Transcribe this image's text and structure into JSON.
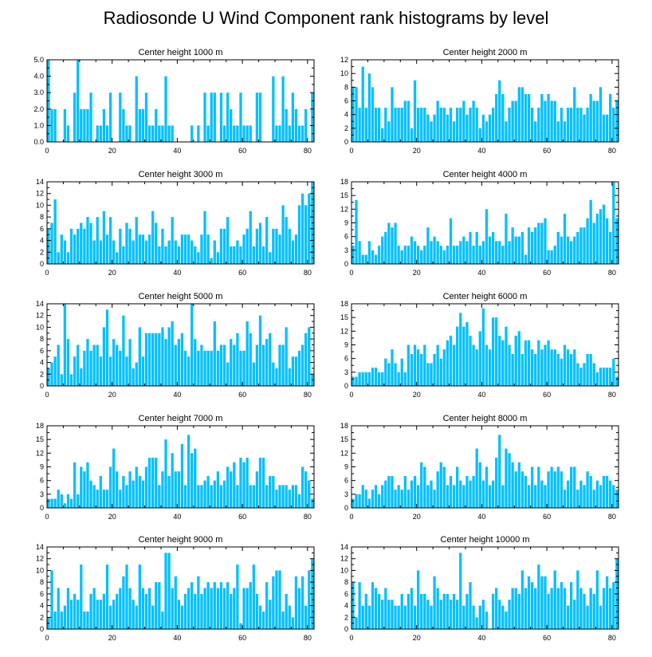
{
  "title": "Radiosonde U Wind Component rank histograms by level",
  "colors": {
    "bar": "#00c0ff",
    "bar_edge": "#ffffff",
    "axis": "#000000"
  },
  "chart_data": [
    {
      "type": "bar",
      "title": "Center height 1000 m",
      "xlim": [
        0,
        82
      ],
      "ylim": [
        0,
        5
      ],
      "xticks": [
        0,
        20,
        40,
        60,
        80
      ],
      "yticks": [
        0,
        1,
        2,
        3,
        4,
        5
      ],
      "ytick_labels": [
        "0.0",
        "1.0",
        "2.0",
        "3.0",
        "4.0",
        "5.0"
      ],
      "values": [
        5,
        2,
        2,
        0,
        0,
        2,
        1,
        0,
        3,
        5,
        2,
        2,
        2,
        3,
        0,
        1,
        1,
        2,
        1,
        3,
        0,
        0,
        3,
        2,
        1,
        1,
        0,
        4,
        2,
        2,
        3,
        1,
        1,
        2,
        1,
        1,
        4,
        1,
        1,
        0,
        0,
        0,
        0,
        0,
        1,
        0,
        1,
        0,
        3,
        1,
        3,
        3,
        0,
        3,
        1,
        3,
        2,
        1,
        1,
        3,
        1,
        1,
        1,
        0,
        3,
        3,
        0,
        0,
        0,
        4,
        1,
        1,
        4,
        2,
        1,
        3,
        2,
        1,
        1,
        2,
        0,
        3
      ]
    },
    {
      "type": "bar",
      "title": "Center height 2000 m",
      "xlim": [
        0,
        82
      ],
      "ylim": [
        0,
        12
      ],
      "xticks": [
        0,
        20,
        40,
        60,
        80
      ],
      "yticks": [
        0,
        2,
        4,
        6,
        8,
        10,
        12
      ],
      "ytick_labels": [
        "0",
        "2",
        "4",
        "6",
        "8",
        "10",
        "12"
      ],
      "values": [
        8,
        8,
        5,
        11,
        5,
        10,
        8,
        5,
        5,
        2,
        5,
        3,
        8,
        5,
        5,
        5,
        6,
        6,
        2,
        9,
        5,
        5,
        5,
        4,
        3,
        4,
        6,
        5,
        5,
        4,
        5,
        3,
        5,
        5,
        6,
        4,
        5,
        6,
        5,
        2,
        4,
        3,
        4,
        5,
        7,
        9,
        7,
        3,
        5,
        6,
        6,
        8,
        8,
        7,
        7,
        5,
        3,
        5,
        7,
        6,
        7,
        6,
        6,
        3,
        5,
        3,
        5,
        5,
        8,
        5,
        5,
        4,
        5,
        7,
        6,
        6,
        8,
        4,
        4,
        7,
        5,
        6
      ]
    },
    {
      "type": "bar",
      "title": "Center height 3000 m",
      "xlim": [
        0,
        82
      ],
      "ylim": [
        0,
        14
      ],
      "xticks": [
        0,
        20,
        40,
        60,
        80
      ],
      "yticks": [
        0,
        2,
        4,
        6,
        8,
        10,
        12,
        14
      ],
      "ytick_labels": [
        "0",
        "2",
        "4",
        "6",
        "8",
        "10",
        "12",
        "14"
      ],
      "values": [
        6,
        7,
        11,
        2,
        5,
        4,
        2,
        6,
        5,
        6,
        7,
        6,
        8,
        7,
        4,
        8,
        4,
        9,
        5,
        8,
        4,
        2,
        6,
        3,
        7,
        6,
        4,
        8,
        5,
        5,
        4,
        5,
        9,
        7,
        3,
        6,
        3,
        4,
        8,
        4,
        3,
        5,
        5,
        5,
        4,
        3,
        2,
        5,
        9,
        5,
        1,
        4,
        2,
        6,
        6,
        8,
        3,
        3,
        4,
        3,
        5,
        6,
        9,
        3,
        6,
        7,
        3,
        8,
        2,
        6,
        6,
        5,
        10,
        8,
        6,
        4,
        5,
        10,
        12,
        10,
        12,
        14
      ]
    },
    {
      "type": "bar",
      "title": "Center height 4000 m",
      "xlim": [
        0,
        82
      ],
      "ylim": [
        0,
        18
      ],
      "xticks": [
        0,
        20,
        40,
        60,
        80
      ],
      "yticks": [
        0,
        3,
        6,
        9,
        12,
        15,
        18
      ],
      "ytick_labels": [
        "0",
        "3",
        "6",
        "9",
        "12",
        "15",
        "18"
      ],
      "values": [
        4,
        14,
        5,
        2,
        2,
        5,
        3,
        2,
        4,
        6,
        7,
        9,
        8,
        9,
        4,
        3,
        4,
        4,
        6,
        5,
        4,
        3,
        4,
        8,
        5,
        6,
        5,
        4,
        3,
        4,
        10,
        4,
        4,
        5,
        6,
        5,
        7,
        4,
        7,
        4,
        5,
        12,
        6,
        7,
        5,
        5,
        4,
        11,
        5,
        8,
        6,
        6,
        7,
        2,
        8,
        7,
        8,
        9,
        9,
        10,
        3,
        3,
        4,
        7,
        6,
        11,
        6,
        5,
        6,
        7,
        8,
        8,
        10,
        14,
        9,
        11,
        12,
        13,
        10,
        7,
        18,
        10
      ]
    },
    {
      "type": "bar",
      "title": "Center height 5000 m",
      "xlim": [
        0,
        82
      ],
      "ylim": [
        0,
        14
      ],
      "xticks": [
        0,
        20,
        40,
        60,
        80
      ],
      "yticks": [
        0,
        2,
        4,
        6,
        8,
        10,
        12,
        14
      ],
      "ytick_labels": [
        "0",
        "2",
        "4",
        "6",
        "8",
        "10",
        "12",
        "14"
      ],
      "values": [
        3,
        4,
        5,
        7,
        2,
        14,
        8,
        2,
        5,
        7,
        3,
        6,
        8,
        6,
        7,
        7,
        5,
        10,
        13,
        5,
        8,
        7,
        6,
        12,
        5,
        8,
        3,
        4,
        10,
        5,
        9,
        9,
        9,
        9,
        9,
        10,
        8,
        10,
        11,
        7,
        8,
        9,
        6,
        5,
        14,
        8,
        6,
        7,
        6,
        6,
        6,
        11,
        6,
        7,
        7,
        4,
        8,
        7,
        9,
        6,
        6,
        11,
        9,
        4,
        7,
        12,
        7,
        8,
        9,
        4,
        3,
        7,
        7,
        10,
        3,
        5,
        5,
        6,
        7,
        9,
        10,
        2
      ]
    },
    {
      "type": "bar",
      "title": "Center height 6000 m",
      "xlim": [
        0,
        82
      ],
      "ylim": [
        0,
        18
      ],
      "xticks": [
        0,
        20,
        40,
        60,
        80
      ],
      "yticks": [
        0,
        3,
        6,
        9,
        12,
        15,
        18
      ],
      "ytick_labels": [
        "0",
        "3",
        "6",
        "9",
        "12",
        "15",
        "18"
      ],
      "values": [
        2,
        2,
        3,
        3,
        3,
        3,
        4,
        4,
        3,
        3,
        6,
        5,
        8,
        5,
        3,
        6,
        3,
        9,
        7,
        9,
        8,
        7,
        9,
        5,
        5,
        7,
        9,
        6,
        8,
        10,
        11,
        9,
        13,
        16,
        13,
        14,
        11,
        9,
        8,
        12,
        17,
        9,
        8,
        15,
        15,
        11,
        10,
        13,
        9,
        7,
        11,
        12,
        7,
        10,
        10,
        8,
        7,
        10,
        8,
        9,
        10,
        8,
        8,
        7,
        6,
        9,
        8,
        7,
        8,
        5,
        4,
        5,
        7,
        7,
        5,
        3,
        4,
        4,
        4,
        4,
        6,
        2
      ]
    },
    {
      "type": "bar",
      "title": "Center height 7000 m",
      "xlim": [
        0,
        82
      ],
      "ylim": [
        0,
        18
      ],
      "xticks": [
        0,
        20,
        40,
        60,
        80
      ],
      "yticks": [
        0,
        3,
        6,
        9,
        12,
        15,
        18
      ],
      "ytick_labels": [
        "0",
        "3",
        "6",
        "9",
        "12",
        "15",
        "18"
      ],
      "values": [
        2,
        2,
        2,
        4,
        3,
        1,
        3,
        2,
        10,
        3,
        9,
        8,
        10,
        6,
        5,
        4,
        7,
        4,
        4,
        9,
        13,
        8,
        4,
        7,
        5,
        8,
        6,
        9,
        7,
        6,
        9,
        11,
        11,
        11,
        5,
        8,
        15,
        7,
        12,
        8,
        8,
        14,
        5,
        16,
        12,
        13,
        5,
        5,
        6,
        7,
        5,
        6,
        8,
        5,
        6,
        9,
        8,
        10,
        5,
        11,
        10,
        11,
        5,
        5,
        8,
        11,
        11,
        5,
        7,
        7,
        4,
        5,
        5,
        5,
        4,
        5,
        5,
        3,
        9,
        8,
        6,
        2
      ]
    },
    {
      "type": "bar",
      "title": "Center height 8000 m",
      "xlim": [
        0,
        82
      ],
      "ylim": [
        0,
        18
      ],
      "xticks": [
        0,
        20,
        40,
        60,
        80
      ],
      "yticks": [
        0,
        3,
        6,
        9,
        12,
        15,
        18
      ],
      "ytick_labels": [
        "0",
        "3",
        "6",
        "9",
        "12",
        "15",
        "18"
      ],
      "values": [
        2,
        3,
        3,
        5,
        4,
        2,
        4,
        5,
        3,
        5,
        6,
        7,
        7,
        4,
        5,
        4,
        7,
        4,
        6,
        7,
        5,
        10,
        9,
        5,
        6,
        4,
        8,
        10,
        9,
        5,
        7,
        5,
        9,
        6,
        5,
        7,
        6,
        7,
        13,
        10,
        6,
        9,
        5,
        6,
        11,
        16,
        5,
        13,
        12,
        10,
        8,
        10,
        8,
        7,
        5,
        9,
        5,
        9,
        6,
        5,
        8,
        9,
        8,
        9,
        8,
        4,
        6,
        9,
        9,
        4,
        6,
        5,
        8,
        7,
        4,
        6,
        5,
        7,
        7,
        6,
        5,
        4
      ]
    },
    {
      "type": "bar",
      "title": "Center height 9000 m",
      "xlim": [
        0,
        82
      ],
      "ylim": [
        0,
        14
      ],
      "xticks": [
        0,
        20,
        40,
        60,
        80
      ],
      "yticks": [
        0,
        2,
        4,
        6,
        8,
        10,
        12,
        14
      ],
      "ytick_labels": [
        "0",
        "2",
        "4",
        "6",
        "8",
        "10",
        "12",
        "14"
      ],
      "values": [
        2,
        10,
        3,
        7,
        3,
        4,
        7,
        5,
        6,
        5,
        11,
        3,
        3,
        6,
        7,
        5,
        5,
        6,
        11,
        4,
        5,
        6,
        7,
        9,
        11,
        7,
        5,
        4,
        11,
        7,
        6,
        7,
        4,
        8,
        8,
        3,
        13,
        13,
        7,
        9,
        5,
        4,
        6,
        7,
        8,
        6,
        9,
        6,
        7,
        8,
        7,
        8,
        7,
        8,
        7,
        8,
        6,
        7,
        11,
        1,
        7,
        7,
        8,
        11,
        6,
        4,
        3,
        8,
        5,
        9,
        10,
        10,
        3,
        6,
        4,
        2,
        9,
        7,
        9,
        4,
        10,
        12
      ]
    },
    {
      "type": "bar",
      "title": "Center height 10000 m",
      "xlim": [
        0,
        82
      ],
      "ylim": [
        0,
        14
      ],
      "xticks": [
        0,
        20,
        40,
        60,
        80
      ],
      "yticks": [
        0,
        2,
        4,
        6,
        8,
        10,
        12,
        14
      ],
      "ytick_labels": [
        "0",
        "2",
        "4",
        "6",
        "8",
        "10",
        "12",
        "14"
      ],
      "values": [
        8,
        2,
        8,
        4,
        6,
        4,
        8,
        7,
        6,
        5,
        7,
        5,
        5,
        4,
        4,
        6,
        4,
        6,
        7,
        4,
        10,
        6,
        6,
        5,
        4,
        9,
        7,
        5,
        6,
        6,
        5,
        6,
        5,
        13,
        4,
        6,
        8,
        4,
        2,
        4,
        5,
        3,
        0,
        6,
        7,
        5,
        4,
        3,
        5,
        7,
        7,
        6,
        10,
        7,
        9,
        8,
        7,
        11,
        9,
        9,
        6,
        7,
        10,
        7,
        8,
        7,
        4,
        8,
        5,
        10,
        7,
        6,
        4,
        7,
        6,
        10,
        4,
        7,
        9,
        7,
        8,
        12
      ]
    }
  ]
}
